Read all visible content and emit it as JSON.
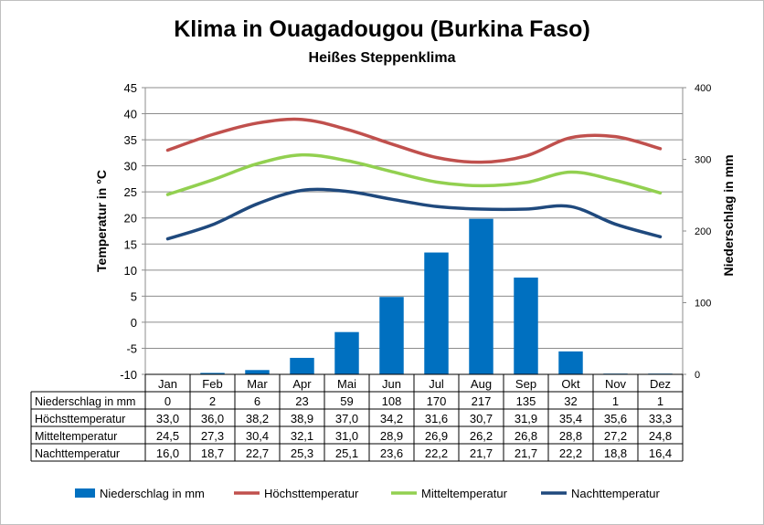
{
  "chart_data": {
    "type": "bar",
    "title": "Klima in Ouagadougou (Burkina Faso)",
    "subtitle": "Heißes Steppenklima",
    "ylabel_left": "Temperatur in °C",
    "ylabel_right": "Niederschlag in mm",
    "ylim_left": [
      -10,
      45
    ],
    "ylim_right": [
      0,
      400
    ],
    "yticks_left": [
      "45",
      "40",
      "35",
      "30",
      "25",
      "20",
      "15",
      "10",
      "5",
      "0",
      "-5",
      "-10"
    ],
    "yticks_right": [
      "400",
      "300",
      "200",
      "100",
      "0"
    ],
    "grid": true,
    "legend_position": "bottom",
    "categories": [
      "Jan",
      "Feb",
      "Mar",
      "Apr",
      "Mai",
      "Jun",
      "Jul",
      "Aug",
      "Sep",
      "Okt",
      "Nov",
      "Dez"
    ],
    "series": [
      {
        "name": "Niederschlag in mm",
        "kind": "bar",
        "axis": "right",
        "color": "#0070C0",
        "values": [
          0,
          2,
          6,
          23,
          59,
          108,
          170,
          217,
          135,
          32,
          1,
          1
        ],
        "labels": [
          "0",
          "2",
          "6",
          "23",
          "59",
          "108",
          "170",
          "217",
          "135",
          "32",
          "1",
          "1"
        ]
      },
      {
        "name": "Höchsttemperatur",
        "kind": "line",
        "axis": "left",
        "color": "#C0504D",
        "values": [
          33.0,
          36.0,
          38.2,
          38.9,
          37.0,
          34.2,
          31.6,
          30.7,
          31.9,
          35.4,
          35.6,
          33.3
        ],
        "labels": [
          "33,0",
          "36,0",
          "38,2",
          "38,9",
          "37,0",
          "34,2",
          "31,6",
          "30,7",
          "31,9",
          "35,4",
          "35,6",
          "33,3"
        ]
      },
      {
        "name": "Mitteltemperatur",
        "kind": "line",
        "axis": "left",
        "color": "#92D050",
        "values": [
          24.5,
          27.3,
          30.4,
          32.1,
          31.0,
          28.9,
          26.9,
          26.2,
          26.8,
          28.8,
          27.2,
          24.8
        ],
        "labels": [
          "24,5",
          "27,3",
          "30,4",
          "32,1",
          "31,0",
          "28,9",
          "26,9",
          "26,2",
          "26,8",
          "28,8",
          "27,2",
          "24,8"
        ]
      },
      {
        "name": "Nachttemperatur",
        "kind": "line",
        "axis": "left",
        "color": "#1F497D",
        "values": [
          16.0,
          18.7,
          22.7,
          25.3,
          25.1,
          23.6,
          22.2,
          21.7,
          21.7,
          22.2,
          18.8,
          16.4
        ],
        "labels": [
          "16,0",
          "18,7",
          "22,7",
          "25,3",
          "25,1",
          "23,6",
          "22,2",
          "21,7",
          "21,7",
          "22,2",
          "18,8",
          "16,4"
        ]
      }
    ]
  }
}
